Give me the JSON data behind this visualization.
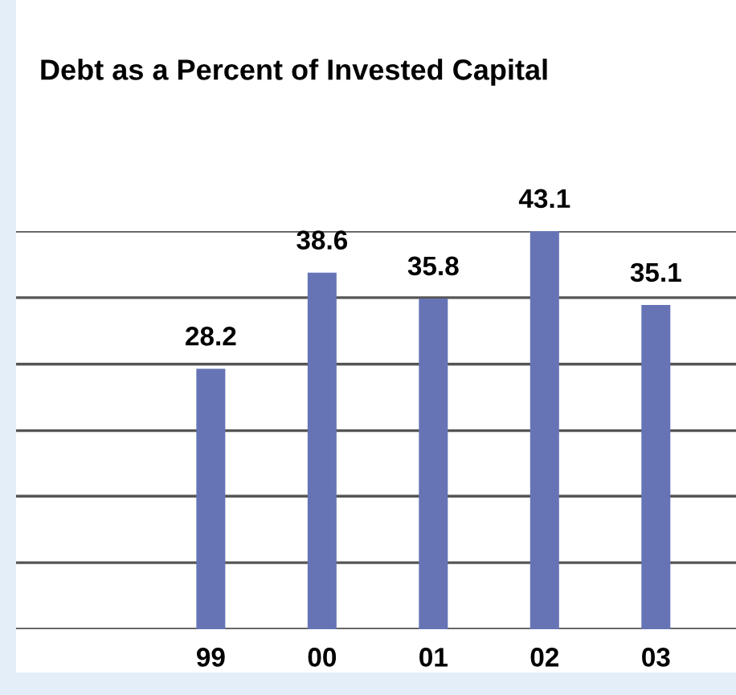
{
  "chart_data": {
    "type": "bar",
    "title": "Debt as a Percent of Invested Capital",
    "categories": [
      "99",
      "00",
      "01",
      "02",
      "03"
    ],
    "values": [
      28.2,
      38.6,
      35.8,
      43.1,
      35.1
    ],
    "color": "#6674b6",
    "data_labels": true,
    "grid": "y",
    "ylim": [
      0,
      43.1
    ],
    "yticks": [
      {
        "value": 0,
        "label": null
      },
      {
        "value": 7.2,
        "label": null
      },
      {
        "value": 14.4,
        "label": null
      },
      {
        "value": 21.5,
        "label": null
      },
      {
        "value": 28.7,
        "label": null
      },
      {
        "value": 35.9,
        "label": null
      },
      {
        "value": 43.1,
        "label": null
      }
    ]
  }
}
